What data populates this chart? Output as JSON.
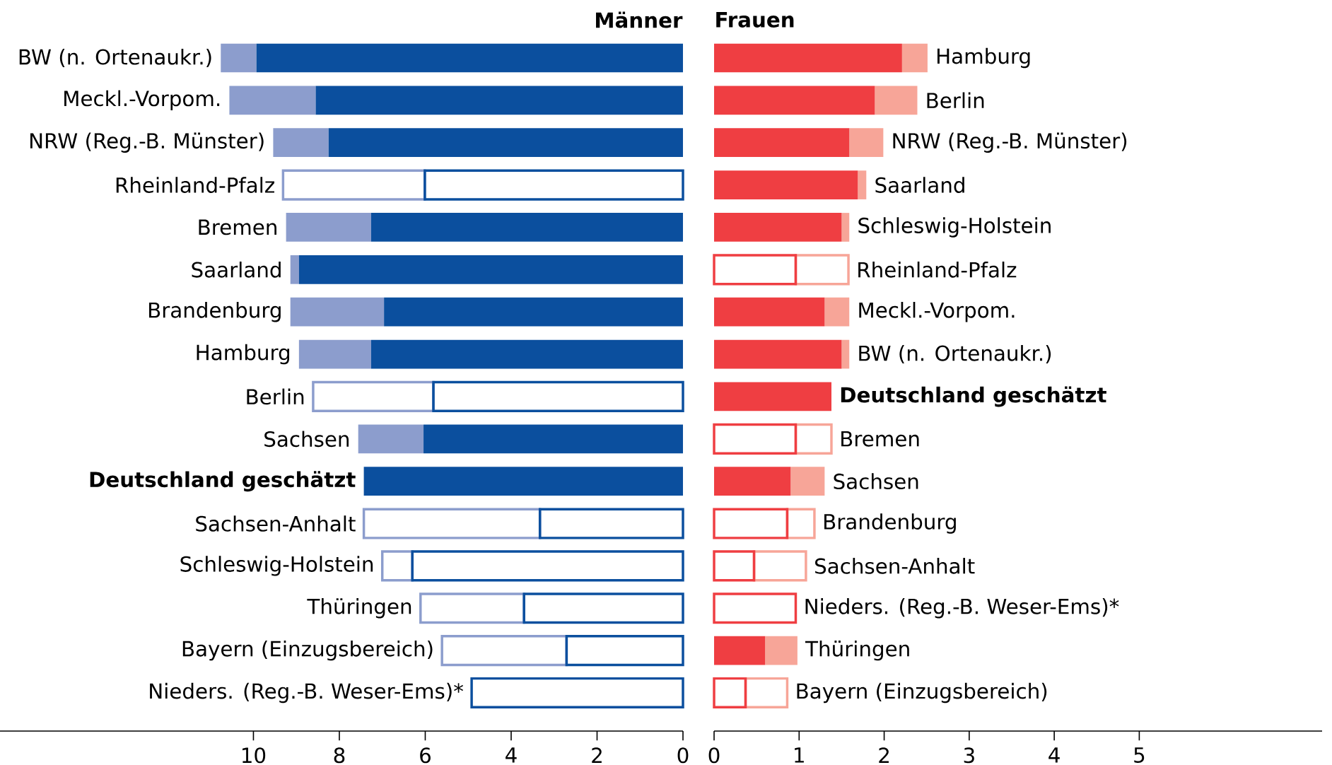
{
  "chart_data": [
    {
      "type": "bar",
      "orientation": "horizontal",
      "stacked": true,
      "title": "Männer",
      "tick_labels": "x",
      "categories": [
        "BW (n. Ortenaukr.)",
        "Meckl.-Vorpom.",
        "NRW (Reg.-B. Münster)",
        "Rheinland-Pfalz",
        "Bremen",
        "Saarland",
        "Brandenburg",
        "Hamburg",
        "Berlin",
        "Sachsen",
        "**Deutschland geschätzt**",
        "Sachsen-Anhalt",
        "Schleswig-Holstein",
        "Thüringen",
        "Bayern (Einzugsbereich)",
        "Nieders. (Reg.-B. Weser-Ems)*"
      ],
      "series": [
        {
          "color": "#0b4f9e",
          "values": [
            9.93,
            8.55,
            8.25,
            null,
            7.26,
            8.94,
            6.96,
            7.26,
            null,
            6.04,
            7.43,
            null,
            null,
            null,
            null,
            null
          ]
        },
        {
          "color": "#8c9dcd",
          "values": [
            0.83,
            2.01,
            1.29,
            null,
            1.98,
            0.2,
            2.18,
            1.68,
            null,
            1.52,
            null,
            null,
            null,
            null,
            null,
            null
          ]
        },
        {
          "color": "#0b4f9e",
          "values": [
            null,
            null,
            null,
            6.01,
            null,
            null,
            null,
            null,
            5.81,
            null,
            null,
            3.33,
            6.3,
            3.7,
            2.71,
            4.92
          ]
        },
        {
          "color": "#8c9dcd",
          "values": [
            null,
            null,
            null,
            3.3,
            null,
            null,
            null,
            null,
            2.8,
            null,
            null,
            4.1,
            0.7,
            2.41,
            2.9,
            null
          ]
        }
      ],
      "xlim": [
        15.9,
        0
      ],
      "xticks": [
        10,
        8,
        6,
        4,
        2,
        0
      ]
    },
    {
      "type": "bar",
      "orientation": "horizontal",
      "stacked": true,
      "title": "Frauen",
      "tick_labels": "x",
      "categories": [
        "Hamburg",
        "Berlin",
        "NRW (Reg.-B. Münster)",
        "Saarland",
        "Schleswig-Holstein",
        "Rheinland-Pfalz",
        "Meckl.-Vorpom.",
        "BW (n. Ortenaukr.)",
        "**Deutschland geschätzt**",
        "Bremen",
        "Sachsen",
        "Brandenburg",
        "Sachsen-Anhalt",
        "Nieders. (Reg.-B. Weser-Ems)*",
        "Thüringen",
        "Bayern (Einzugsbereich)"
      ],
      "series": [
        {
          "color": "#ef3e42",
          "values": [
            2.21,
            1.89,
            1.59,
            1.69,
            1.5,
            null,
            1.3,
            1.5,
            1.38,
            null,
            0.9,
            null,
            null,
            null,
            0.6,
            null
          ]
        },
        {
          "color": "#f7a598",
          "values": [
            0.3,
            0.5,
            0.4,
            0.1,
            0.09,
            null,
            0.29,
            0.09,
            null,
            null,
            0.4,
            null,
            null,
            null,
            0.38,
            null
          ]
        },
        {
          "color": "#ef3e42",
          "values": [
            null,
            null,
            null,
            null,
            null,
            0.96,
            null,
            null,
            null,
            0.96,
            null,
            0.86,
            0.47,
            0.96,
            null,
            0.37
          ]
        },
        {
          "color": "#f7a598",
          "values": [
            null,
            null,
            null,
            null,
            null,
            0.62,
            null,
            null,
            null,
            0.42,
            null,
            0.32,
            0.61,
            null,
            null,
            0.49
          ]
        }
      ],
      "xlim": [
        0,
        7.15
      ],
      "xticks": [
        0,
        1,
        2,
        3,
        4,
        5
      ]
    }
  ]
}
